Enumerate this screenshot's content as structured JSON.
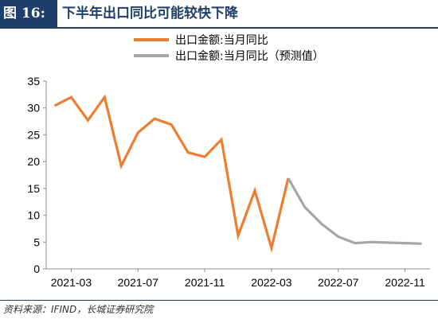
{
  "figure": {
    "tag": "图 16:",
    "title": "下半年出口同比可能较快下降"
  },
  "source": "资料来源：IFIND，长城证券研究院",
  "colors": {
    "header": "#1f3f6b",
    "actual": "#ed7d31",
    "forecast": "#a6a6a6"
  },
  "chart_data": {
    "type": "line",
    "title": "",
    "xlabel": "",
    "ylabel": "",
    "ylim": [
      0,
      35
    ],
    "yticks": [
      0,
      5,
      10,
      15,
      20,
      25,
      30,
      35
    ],
    "xticks": [
      "2021-03",
      "2021-07",
      "2021-11",
      "2022-03",
      "2022-07",
      "2022-11"
    ],
    "x": [
      "2021-02",
      "2021-03",
      "2021-04",
      "2021-05",
      "2021-06",
      "2021-07",
      "2021-08",
      "2021-09",
      "2021-10",
      "2021-11",
      "2021-12",
      "2022-01",
      "2022-02",
      "2022-03",
      "2022-04",
      "2022-05",
      "2022-06",
      "2022-07",
      "2022-08",
      "2022-09",
      "2022-10",
      "2022-11",
      "2022-12"
    ],
    "grid": false,
    "legend_position": "top",
    "series": [
      {
        "name": "出口金额:当月同比",
        "values": [
          30.4,
          32.0,
          27.7,
          32.0,
          19.2,
          25.4,
          28.0,
          26.9,
          21.7,
          20.9,
          24.1,
          6.2,
          14.6,
          3.9,
          16.9,
          null,
          null,
          null,
          null,
          null,
          null,
          null,
          null
        ]
      },
      {
        "name": "出口金额:当月同比（预测值）",
        "values": [
          null,
          null,
          null,
          null,
          null,
          null,
          null,
          null,
          null,
          null,
          null,
          null,
          null,
          null,
          16.9,
          11.5,
          8.4,
          6.0,
          4.8,
          5.0,
          4.9,
          4.8,
          4.7
        ]
      }
    ]
  }
}
